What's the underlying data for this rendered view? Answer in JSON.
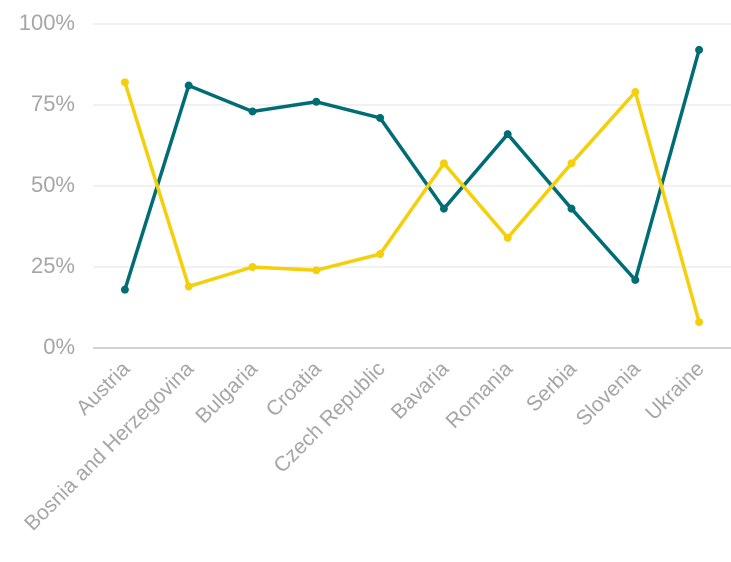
{
  "chart_data": {
    "type": "line",
    "categories": [
      "Austria",
      "Bosnia and Herzegovina",
      "Bulgaria",
      "Croatia",
      "Czech Republic",
      "Bavaria",
      "Romania",
      "Serbia",
      "Slovenia",
      "Ukraine"
    ],
    "series": [
      {
        "color": "#006d75",
        "values": [
          18,
          81,
          73,
          76,
          71,
          43,
          66,
          43,
          21,
          92
        ]
      },
      {
        "color": "#f5cf0a",
        "values": [
          82,
          19,
          25,
          24,
          29,
          57,
          34,
          57,
          79,
          8
        ]
      }
    ],
    "ylim": [
      0,
      100
    ],
    "yticks": [
      {
        "value": 0,
        "label": "0%"
      },
      {
        "value": 25,
        "label": "25%"
      },
      {
        "value": 50,
        "label": "50%"
      },
      {
        "value": 75,
        "label": "75%"
      },
      {
        "value": 100,
        "label": "100%"
      }
    ],
    "grid": true
  }
}
